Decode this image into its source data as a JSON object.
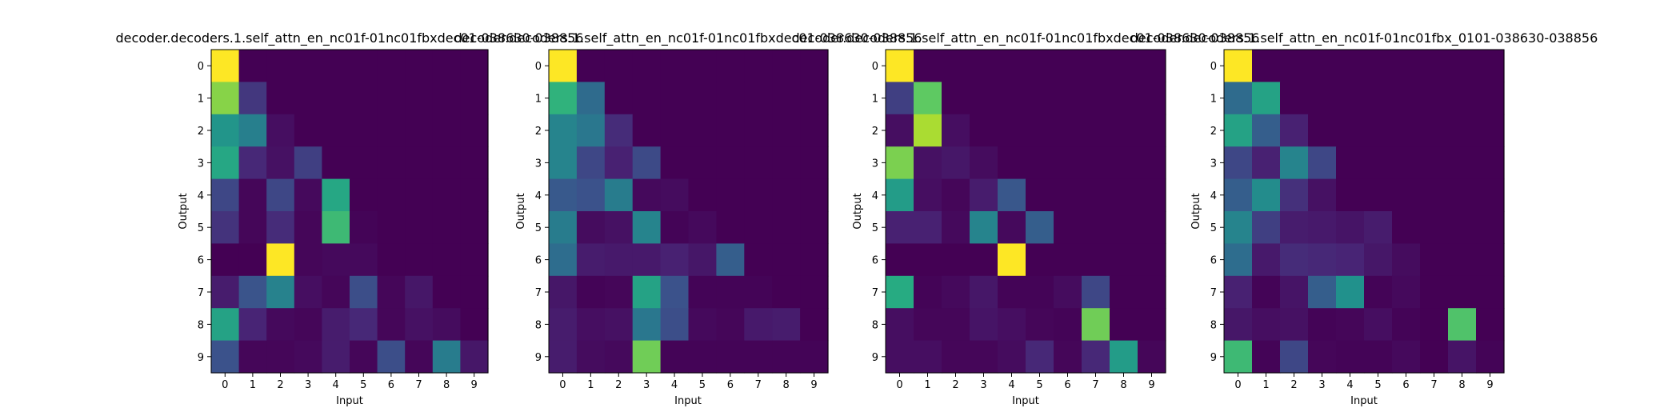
{
  "chart_data": [
    {
      "type": "heatmap",
      "title": "decoder.decoders.1.self_attn_en_nc01f-01nc01fbxdec01-038630-038856",
      "xlabel": "Input",
      "ylabel": "Output",
      "x_ticks": [
        "0",
        "1",
        "2",
        "3",
        "4",
        "5",
        "6",
        "7",
        "8",
        "9"
      ],
      "y_ticks": [
        "0",
        "1",
        "2",
        "3",
        "4",
        "5",
        "6",
        "7",
        "8",
        "9"
      ],
      "colormap": "viridis",
      "value_range": [
        0,
        1
      ],
      "values": [
        [
          1.0,
          0.0,
          0.0,
          0.0,
          0.0,
          0.0,
          0.0,
          0.0,
          0.0,
          0.0
        ],
        [
          0.82,
          0.18,
          0.0,
          0.0,
          0.0,
          0.0,
          0.0,
          0.0,
          0.0,
          0.0
        ],
        [
          0.52,
          0.43,
          0.05,
          0.0,
          0.0,
          0.0,
          0.0,
          0.0,
          0.0,
          0.0
        ],
        [
          0.6,
          0.14,
          0.06,
          0.2,
          0.0,
          0.0,
          0.0,
          0.0,
          0.0,
          0.0
        ],
        [
          0.22,
          0.02,
          0.22,
          0.03,
          0.6,
          0.0,
          0.0,
          0.0,
          0.0,
          0.0
        ],
        [
          0.17,
          0.02,
          0.15,
          0.02,
          0.68,
          0.01,
          0.0,
          0.0,
          0.0,
          0.0
        ],
        [
          0.0,
          0.0,
          1.0,
          0.02,
          0.03,
          0.03,
          0.0,
          0.0,
          0.0,
          0.0
        ],
        [
          0.1,
          0.26,
          0.44,
          0.05,
          0.02,
          0.24,
          0.02,
          0.08,
          0.0,
          0.0
        ],
        [
          0.58,
          0.13,
          0.03,
          0.02,
          0.1,
          0.14,
          0.02,
          0.06,
          0.04,
          0.0
        ],
        [
          0.25,
          0.02,
          0.02,
          0.03,
          0.1,
          0.02,
          0.24,
          0.02,
          0.42,
          0.08
        ]
      ]
    },
    {
      "type": "heatmap",
      "title": "decoder.decoders.1.self_attn_en_nc01f-01nc01fbxdec01-038630-038856",
      "xlabel": "Input",
      "ylabel": "Output",
      "x_ticks": [
        "0",
        "1",
        "2",
        "3",
        "4",
        "5",
        "6",
        "7",
        "8",
        "9"
      ],
      "y_ticks": [
        "0",
        "1",
        "2",
        "3",
        "4",
        "5",
        "6",
        "7",
        "8",
        "9"
      ],
      "colormap": "viridis",
      "value_range": [
        0,
        1
      ],
      "values": [
        [
          1.0,
          0.0,
          0.0,
          0.0,
          0.0,
          0.0,
          0.0,
          0.0,
          0.0,
          0.0
        ],
        [
          0.65,
          0.35,
          0.0,
          0.0,
          0.0,
          0.0,
          0.0,
          0.0,
          0.0,
          0.0
        ],
        [
          0.45,
          0.4,
          0.15,
          0.0,
          0.0,
          0.0,
          0.0,
          0.0,
          0.0,
          0.0
        ],
        [
          0.45,
          0.22,
          0.12,
          0.23,
          0.0,
          0.0,
          0.0,
          0.0,
          0.0,
          0.0
        ],
        [
          0.28,
          0.25,
          0.42,
          0.03,
          0.04,
          0.0,
          0.0,
          0.0,
          0.0,
          0.0
        ],
        [
          0.42,
          0.04,
          0.06,
          0.45,
          0.01,
          0.03,
          0.0,
          0.0,
          0.0,
          0.0
        ],
        [
          0.36,
          0.1,
          0.09,
          0.09,
          0.12,
          0.08,
          0.3,
          0.0,
          0.0,
          0.0
        ],
        [
          0.08,
          0.01,
          0.02,
          0.58,
          0.25,
          0.01,
          0.01,
          0.01,
          0.0,
          0.0
        ],
        [
          0.1,
          0.05,
          0.06,
          0.4,
          0.24,
          0.03,
          0.02,
          0.09,
          0.1,
          0.0
        ],
        [
          0.1,
          0.04,
          0.03,
          0.78,
          0.01,
          0.01,
          0.01,
          0.01,
          0.01,
          0.01
        ]
      ]
    },
    {
      "type": "heatmap",
      "title": "decoder.decoders.1.self_attn_en_nc01f-01nc01fbxdec01-038630-038856",
      "xlabel": "Input",
      "ylabel": "Output",
      "x_ticks": [
        "0",
        "1",
        "2",
        "3",
        "4",
        "5",
        "6",
        "7",
        "8",
        "9"
      ],
      "y_ticks": [
        "0",
        "1",
        "2",
        "3",
        "4",
        "5",
        "6",
        "7",
        "8",
        "9"
      ],
      "colormap": "viridis",
      "value_range": [
        0,
        1
      ],
      "values": [
        [
          1.0,
          0.0,
          0.0,
          0.0,
          0.0,
          0.0,
          0.0,
          0.0,
          0.0,
          0.0
        ],
        [
          0.2,
          0.75,
          0.0,
          0.0,
          0.0,
          0.0,
          0.0,
          0.0,
          0.0,
          0.0
        ],
        [
          0.05,
          0.88,
          0.05,
          0.0,
          0.0,
          0.0,
          0.0,
          0.0,
          0.0,
          0.0
        ],
        [
          0.8,
          0.06,
          0.08,
          0.04,
          0.0,
          0.0,
          0.0,
          0.0,
          0.0,
          0.0
        ],
        [
          0.55,
          0.05,
          0.02,
          0.1,
          0.27,
          0.0,
          0.0,
          0.0,
          0.0,
          0.0
        ],
        [
          0.12,
          0.12,
          0.03,
          0.45,
          0.03,
          0.3,
          0.0,
          0.0,
          0.0,
          0.0
        ],
        [
          0.0,
          0.0,
          0.0,
          0.0,
          1.0,
          0.0,
          0.0,
          0.0,
          0.0,
          0.0
        ],
        [
          0.62,
          0.01,
          0.03,
          0.08,
          0.01,
          0.01,
          0.04,
          0.22,
          0.0,
          0.0
        ],
        [
          0.05,
          0.02,
          0.02,
          0.07,
          0.05,
          0.02,
          0.01,
          0.78,
          0.0,
          0.0
        ],
        [
          0.05,
          0.05,
          0.02,
          0.02,
          0.04,
          0.14,
          0.02,
          0.14,
          0.55,
          0.02
        ]
      ]
    },
    {
      "type": "heatmap",
      "title": "decoder.decoders.1.self_attn_en_nc01f-01nc01fbx_0101-038630-038856",
      "xlabel": "Input",
      "ylabel": "Output",
      "x_ticks": [
        "0",
        "1",
        "2",
        "3",
        "4",
        "5",
        "6",
        "7",
        "8",
        "9"
      ],
      "y_ticks": [
        "0",
        "1",
        "2",
        "3",
        "4",
        "5",
        "6",
        "7",
        "8",
        "9"
      ],
      "colormap": "viridis",
      "value_range": [
        0,
        1
      ],
      "values": [
        [
          1.0,
          0.0,
          0.0,
          0.0,
          0.0,
          0.0,
          0.0,
          0.0,
          0.0,
          0.0
        ],
        [
          0.35,
          0.58,
          0.0,
          0.0,
          0.0,
          0.0,
          0.0,
          0.0,
          0.0,
          0.0
        ],
        [
          0.58,
          0.3,
          0.12,
          0.0,
          0.0,
          0.0,
          0.0,
          0.0,
          0.0,
          0.0
        ],
        [
          0.22,
          0.12,
          0.45,
          0.22,
          0.0,
          0.0,
          0.0,
          0.0,
          0.0,
          0.0
        ],
        [
          0.3,
          0.48,
          0.16,
          0.06,
          0.0,
          0.0,
          0.0,
          0.0,
          0.0,
          0.0
        ],
        [
          0.45,
          0.2,
          0.1,
          0.09,
          0.07,
          0.1,
          0.0,
          0.0,
          0.0,
          0.0
        ],
        [
          0.36,
          0.09,
          0.15,
          0.14,
          0.13,
          0.08,
          0.04,
          0.0,
          0.0,
          0.0
        ],
        [
          0.12,
          0.01,
          0.07,
          0.3,
          0.5,
          0.01,
          0.03,
          0.0,
          0.0,
          0.0
        ],
        [
          0.08,
          0.05,
          0.06,
          0.01,
          0.02,
          0.05,
          0.01,
          0.0,
          0.72,
          0.0
        ],
        [
          0.68,
          0.01,
          0.22,
          0.02,
          0.01,
          0.01,
          0.03,
          0.0,
          0.07,
          0.01
        ]
      ]
    }
  ]
}
